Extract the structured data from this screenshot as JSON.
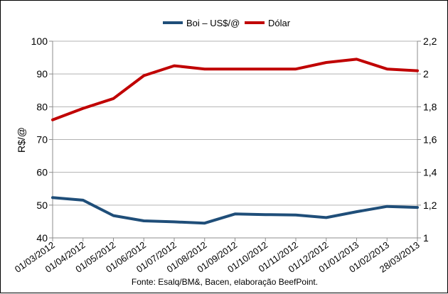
{
  "chart_data": {
    "type": "line",
    "categories": [
      "01/03/2012",
      "01/04/2012",
      "01/05/2012",
      "01/06/2012",
      "01/07/2012",
      "01/08/2012",
      "01/09/2012",
      "01/10/2012",
      "01/11/2012",
      "01/12/2012",
      "01/01/2013",
      "01/02/2013",
      "28/03/2013"
    ],
    "series": [
      {
        "name": "Boi – US$/@",
        "axis": "left",
        "color": "#1f4e79",
        "values": [
          52.3,
          51.5,
          46.8,
          45.2,
          44.9,
          44.5,
          47.3,
          47.1,
          47.0,
          46.2,
          48.0,
          49.6,
          49.3
        ]
      },
      {
        "name": "Dólar",
        "axis": "right",
        "color": "#c00000",
        "values": [
          1.72,
          1.79,
          1.85,
          1.99,
          2.05,
          2.03,
          2.03,
          2.03,
          2.03,
          2.07,
          2.09,
          2.03,
          2.02
        ]
      }
    ],
    "ylabel": "R$/@",
    "ylim": [
      40,
      100
    ],
    "yticks": [
      "40",
      "50",
      "60",
      "70",
      "80",
      "90",
      "100"
    ],
    "y2lim": [
      1,
      2.2
    ],
    "y2ticks": [
      "1",
      "1,2",
      "1,4",
      "1,6",
      "1,8",
      "2",
      "2,2"
    ],
    "grid": true,
    "legend_position": "top-center"
  },
  "source_note": "Fonte: Esalq/BM&, Bacen, elaboração BeefPoint."
}
